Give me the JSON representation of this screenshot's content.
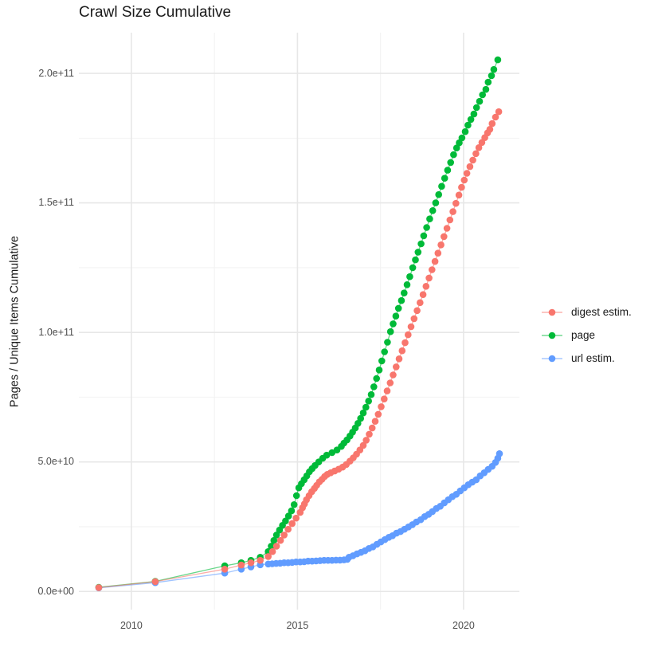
{
  "page": {
    "background": "#ffffff"
  },
  "chart_data": {
    "type": "line",
    "title": "Crawl Size Cumulative",
    "xlabel": "",
    "ylabel": "Pages / Unique Items Cumulative",
    "legend_position": "right",
    "grid": {
      "on": true,
      "major_color": "#e7e7e7",
      "minor_color": "#f2f2f2"
    },
    "xlim": [
      2008.42,
      2021.68
    ],
    "ylim_1e9": [
      -7,
      215.7
    ],
    "x_ticks": {
      "values": [
        2010,
        2015,
        2020
      ],
      "labels": [
        "2010",
        "2015",
        "2020"
      ],
      "minor_values": [
        2012.5,
        2017.5
      ]
    },
    "y_ticks": {
      "values_1e9": [
        0,
        50,
        100,
        150,
        200
      ],
      "labels": [
        "0.0e+00",
        "5.0e+10",
        "1.0e+11",
        "1.5e+11",
        "2.0e+11"
      ],
      "minor_values_1e9": [
        25,
        75,
        125,
        175
      ]
    },
    "values_unit": "1e9",
    "legend": {
      "entries": [
        {
          "label": "digest estim.",
          "color": "#F8766D"
        },
        {
          "label": "page",
          "color": "#00BA38"
        },
        {
          "label": "url estim.",
          "color": "#619CFF"
        }
      ]
    },
    "series": [
      {
        "name": "digest estim.",
        "color": "#F8766D",
        "points": [
          [
            2009.02,
            1.5
          ],
          [
            2010.72,
            3.8
          ],
          [
            2012.81,
            8.6
          ],
          [
            2013.31,
            10.2
          ],
          [
            2013.6,
            11.1
          ],
          [
            2013.88,
            12.0
          ],
          [
            2014.12,
            13.5
          ],
          [
            2014.25,
            15.4
          ],
          [
            2014.37,
            17.5
          ],
          [
            2014.49,
            19.7
          ],
          [
            2014.6,
            21.8
          ],
          [
            2014.72,
            24.0
          ],
          [
            2014.84,
            26.2
          ],
          [
            2014.96,
            28.3
          ],
          [
            2015.08,
            30.5
          ],
          [
            2015.15,
            32.3
          ],
          [
            2015.21,
            33.8
          ],
          [
            2015.27,
            35.4
          ],
          [
            2015.35,
            37.0
          ],
          [
            2015.43,
            38.5
          ],
          [
            2015.51,
            39.8
          ],
          [
            2015.58,
            41.0
          ],
          [
            2015.66,
            42.3
          ],
          [
            2015.74,
            43.3
          ],
          [
            2015.82,
            44.4
          ],
          [
            2015.9,
            45.2
          ],
          [
            2016.0,
            45.8
          ],
          [
            2016.12,
            46.5
          ],
          [
            2016.24,
            47.2
          ],
          [
            2016.36,
            48.0
          ],
          [
            2016.47,
            49.0
          ],
          [
            2016.58,
            50.3
          ],
          [
            2016.68,
            51.6
          ],
          [
            2016.78,
            53.0
          ],
          [
            2016.88,
            54.6
          ],
          [
            2016.98,
            56.4
          ],
          [
            2017.07,
            58.4
          ],
          [
            2017.16,
            60.7
          ],
          [
            2017.25,
            63.1
          ],
          [
            2017.34,
            65.7
          ],
          [
            2017.43,
            68.4
          ],
          [
            2017.52,
            71.3
          ],
          [
            2017.61,
            74.3
          ],
          [
            2017.7,
            77.4
          ],
          [
            2017.79,
            80.5
          ],
          [
            2017.88,
            83.6
          ],
          [
            2017.97,
            86.7
          ],
          [
            2018.06,
            89.8
          ],
          [
            2018.15,
            92.9
          ],
          [
            2018.24,
            96.0
          ],
          [
            2018.33,
            99.1
          ],
          [
            2018.42,
            102.2
          ],
          [
            2018.51,
            105.3
          ],
          [
            2018.6,
            108.4
          ],
          [
            2018.69,
            111.5
          ],
          [
            2018.78,
            114.6
          ],
          [
            2018.87,
            117.8
          ],
          [
            2018.96,
            121.0
          ],
          [
            2019.05,
            124.2
          ],
          [
            2019.14,
            127.4
          ],
          [
            2019.23,
            130.6
          ],
          [
            2019.32,
            133.8
          ],
          [
            2019.41,
            137.0
          ],
          [
            2019.5,
            140.2
          ],
          [
            2019.59,
            143.4
          ],
          [
            2019.68,
            146.6
          ],
          [
            2019.77,
            149.8
          ],
          [
            2019.86,
            153.0
          ],
          [
            2019.94,
            156.0
          ],
          [
            2020.02,
            158.8
          ],
          [
            2020.1,
            161.4
          ],
          [
            2020.19,
            164.0
          ],
          [
            2020.28,
            166.5
          ],
          [
            2020.37,
            169.0
          ],
          [
            2020.46,
            171.3
          ],
          [
            2020.55,
            173.3
          ],
          [
            2020.64,
            175.2
          ],
          [
            2020.72,
            177.0
          ],
          [
            2020.79,
            178.4
          ],
          [
            2020.86,
            180.6
          ],
          [
            2020.96,
            183.1
          ],
          [
            2021.06,
            185.2
          ]
        ]
      },
      {
        "name": "page",
        "color": "#00BA38",
        "points": [
          [
            2009.02,
            1.6
          ],
          [
            2010.72,
            3.9
          ],
          [
            2012.81,
            9.9
          ],
          [
            2013.31,
            11.1
          ],
          [
            2013.6,
            12.0
          ],
          [
            2013.88,
            13.2
          ],
          [
            2014.12,
            15.4
          ],
          [
            2014.21,
            17.5
          ],
          [
            2014.29,
            19.7
          ],
          [
            2014.37,
            21.8
          ],
          [
            2014.46,
            23.7
          ],
          [
            2014.55,
            25.5
          ],
          [
            2014.64,
            27.2
          ],
          [
            2014.73,
            29.1
          ],
          [
            2014.82,
            31.1
          ],
          [
            2014.9,
            33.5
          ],
          [
            2014.97,
            37.0
          ],
          [
            2015.04,
            40.0
          ],
          [
            2015.12,
            41.6
          ],
          [
            2015.2,
            43.1
          ],
          [
            2015.28,
            44.6
          ],
          [
            2015.36,
            46.2
          ],
          [
            2015.44,
            47.4
          ],
          [
            2015.53,
            48.6
          ],
          [
            2015.64,
            50.0
          ],
          [
            2015.76,
            51.4
          ],
          [
            2015.88,
            52.6
          ],
          [
            2016.04,
            53.6
          ],
          [
            2016.19,
            54.6
          ],
          [
            2016.32,
            56.0
          ],
          [
            2016.4,
            57.3
          ],
          [
            2016.49,
            58.5
          ],
          [
            2016.58,
            60.0
          ],
          [
            2016.66,
            61.5
          ],
          [
            2016.74,
            63.1
          ],
          [
            2016.82,
            64.9
          ],
          [
            2016.9,
            66.8
          ],
          [
            2016.98,
            68.9
          ],
          [
            2017.06,
            71.1
          ],
          [
            2017.14,
            73.5
          ],
          [
            2017.22,
            76.0
          ],
          [
            2017.3,
            79.0
          ],
          [
            2017.38,
            82.2
          ],
          [
            2017.46,
            85.5
          ],
          [
            2017.54,
            89.0
          ],
          [
            2017.62,
            92.5
          ],
          [
            2017.71,
            96.2
          ],
          [
            2017.8,
            100.3
          ],
          [
            2017.88,
            103.3
          ],
          [
            2017.96,
            106.3
          ],
          [
            2018.04,
            109.3
          ],
          [
            2018.13,
            112.3
          ],
          [
            2018.21,
            115.2
          ],
          [
            2018.3,
            118.4
          ],
          [
            2018.38,
            121.5
          ],
          [
            2018.47,
            125.0
          ],
          [
            2018.55,
            128.0
          ],
          [
            2018.63,
            131.0
          ],
          [
            2018.72,
            134.2
          ],
          [
            2018.8,
            137.3
          ],
          [
            2018.89,
            140.5
          ],
          [
            2018.98,
            143.8
          ],
          [
            2019.07,
            147.0
          ],
          [
            2019.16,
            150.0
          ],
          [
            2019.25,
            153.2
          ],
          [
            2019.34,
            156.4
          ],
          [
            2019.43,
            159.5
          ],
          [
            2019.52,
            162.6
          ],
          [
            2019.61,
            165.6
          ],
          [
            2019.7,
            168.6
          ],
          [
            2019.79,
            171.2
          ],
          [
            2019.87,
            173.2
          ],
          [
            2019.95,
            175.1
          ],
          [
            2020.05,
            177.5
          ],
          [
            2020.13,
            180.0
          ],
          [
            2020.22,
            182.2
          ],
          [
            2020.31,
            184.3
          ],
          [
            2020.39,
            186.8
          ],
          [
            2020.48,
            189.2
          ],
          [
            2020.57,
            191.7
          ],
          [
            2020.67,
            193.8
          ],
          [
            2020.74,
            196.6
          ],
          [
            2020.84,
            199.1
          ],
          [
            2020.91,
            201.5
          ],
          [
            2021.03,
            205.2
          ]
        ]
      },
      {
        "name": "url estim.",
        "color": "#619CFF",
        "points": [
          [
            2009.02,
            1.4
          ],
          [
            2010.72,
            3.4
          ],
          [
            2012.81,
            7.1
          ],
          [
            2013.31,
            8.6
          ],
          [
            2013.6,
            9.5
          ],
          [
            2013.88,
            10.3
          ],
          [
            2014.12,
            10.6
          ],
          [
            2014.24,
            10.7
          ],
          [
            2014.36,
            10.8
          ],
          [
            2014.48,
            10.9
          ],
          [
            2014.6,
            11.1
          ],
          [
            2014.72,
            11.1
          ],
          [
            2014.84,
            11.2
          ],
          [
            2014.96,
            11.4
          ],
          [
            2015.08,
            11.4
          ],
          [
            2015.2,
            11.5
          ],
          [
            2015.32,
            11.7
          ],
          [
            2015.44,
            11.7
          ],
          [
            2015.56,
            11.8
          ],
          [
            2015.68,
            11.9
          ],
          [
            2015.8,
            12.0
          ],
          [
            2015.92,
            12.0
          ],
          [
            2016.04,
            12.0
          ],
          [
            2016.16,
            12.1
          ],
          [
            2016.28,
            12.1
          ],
          [
            2016.4,
            12.2
          ],
          [
            2016.5,
            12.4
          ],
          [
            2016.55,
            13.2
          ],
          [
            2016.67,
            13.8
          ],
          [
            2016.79,
            14.5
          ],
          [
            2016.91,
            15.1
          ],
          [
            2017.03,
            15.7
          ],
          [
            2017.15,
            16.6
          ],
          [
            2017.27,
            17.2
          ],
          [
            2017.39,
            18.2
          ],
          [
            2017.51,
            19.1
          ],
          [
            2017.63,
            20.0
          ],
          [
            2017.75,
            20.9
          ],
          [
            2017.86,
            21.5
          ],
          [
            2017.98,
            22.5
          ],
          [
            2018.1,
            23.1
          ],
          [
            2018.22,
            24.0
          ],
          [
            2018.34,
            24.9
          ],
          [
            2018.46,
            25.8
          ],
          [
            2018.58,
            26.8
          ],
          [
            2018.71,
            27.7
          ],
          [
            2018.83,
            28.9
          ],
          [
            2018.95,
            29.8
          ],
          [
            2019.06,
            30.8
          ],
          [
            2019.18,
            32.0
          ],
          [
            2019.3,
            32.9
          ],
          [
            2019.42,
            34.2
          ],
          [
            2019.54,
            35.4
          ],
          [
            2019.66,
            36.6
          ],
          [
            2019.78,
            37.5
          ],
          [
            2019.9,
            38.8
          ],
          [
            2020.02,
            40.0
          ],
          [
            2020.14,
            41.2
          ],
          [
            2020.26,
            42.2
          ],
          [
            2020.38,
            43.1
          ],
          [
            2020.5,
            44.6
          ],
          [
            2020.62,
            45.8
          ],
          [
            2020.74,
            47.1
          ],
          [
            2020.86,
            48.3
          ],
          [
            2020.96,
            49.8
          ],
          [
            2021.03,
            51.4
          ],
          [
            2021.08,
            53.2
          ]
        ]
      }
    ]
  }
}
